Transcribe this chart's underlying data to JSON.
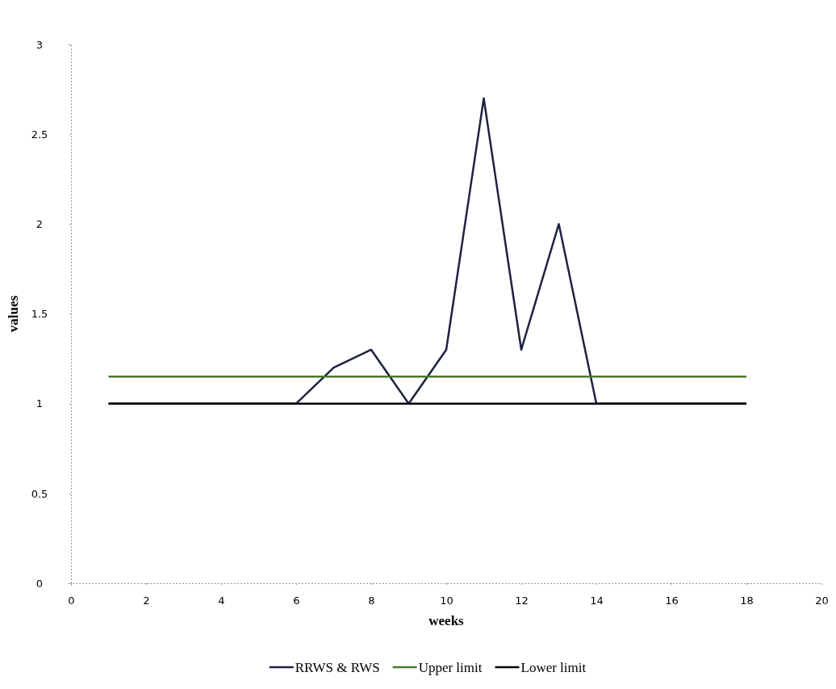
{
  "chart_data": {
    "type": "line",
    "xlabel": "weeks",
    "ylabel": "values",
    "xlim": [
      0,
      20
    ],
    "xticks": [
      0,
      2,
      4,
      6,
      8,
      10,
      12,
      14,
      16,
      18,
      20
    ],
    "ylim": [
      0,
      3
    ],
    "yticks": [
      0,
      0.5,
      1,
      1.5,
      2,
      2.5,
      3
    ],
    "grid": false,
    "legend": "bottom",
    "marker": "none",
    "line_style": "solid",
    "x": [
      1,
      2,
      3,
      4,
      5,
      6,
      7,
      8,
      9,
      10,
      11,
      12,
      13,
      14,
      15,
      16,
      17,
      18
    ],
    "series": [
      {
        "name": "RRWS & RWS",
        "color": "#1f2340",
        "values": [
          1,
          1,
          1,
          1,
          1,
          1,
          1.2,
          1.3,
          1,
          1.3,
          2.7,
          1.3,
          2,
          1,
          1,
          1,
          1,
          1
        ]
      },
      {
        "name": "Upper limit",
        "color": "#4a7a2a",
        "values": [
          1.15,
          1.15,
          1.15,
          1.15,
          1.15,
          1.15,
          1.15,
          1.15,
          1.15,
          1.15,
          1.15,
          1.15,
          1.15,
          1.15,
          1.15,
          1.15,
          1.15,
          1.15
        ]
      },
      {
        "name": "Lower limit",
        "color": "#000000",
        "values": [
          1,
          1,
          1,
          1,
          1,
          1,
          1,
          1,
          1,
          1,
          1,
          1,
          1,
          1,
          1,
          1,
          1,
          1
        ]
      }
    ]
  }
}
